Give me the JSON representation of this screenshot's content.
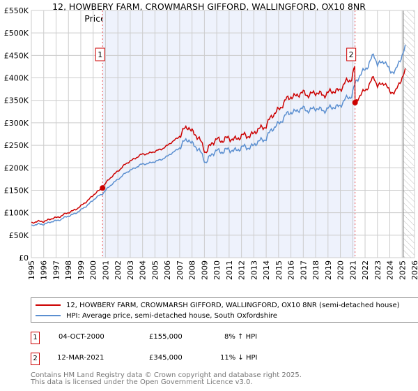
{
  "chart_data": {
    "type": "line",
    "title": "12, HOWBERY FARM, CROWMARSH GIFFORD, WALLINGFORD, OX10 8NR",
    "subtitle": "Price paid vs. HM Land Registry's House Price Index (HPI)",
    "xlim": [
      1995,
      2026
    ],
    "ylim": [
      0,
      550000
    ],
    "x_ticks": [
      "1995",
      "1996",
      "1997",
      "1998",
      "1999",
      "2000",
      "2001",
      "2002",
      "2003",
      "2004",
      "2005",
      "2006",
      "2007",
      "2008",
      "2009",
      "2010",
      "2011",
      "2012",
      "2013",
      "2014",
      "2015",
      "2016",
      "2017",
      "2018",
      "2019",
      "2020",
      "2021",
      "2022",
      "2023",
      "2024",
      "2025",
      "2026"
    ],
    "y_ticks": [
      {
        "v": 0,
        "label": "£0"
      },
      {
        "v": 50000,
        "label": "£50K"
      },
      {
        "v": 100000,
        "label": "£100K"
      },
      {
        "v": 150000,
        "label": "£150K"
      },
      {
        "v": 200000,
        "label": "£200K"
      },
      {
        "v": 250000,
        "label": "£250K"
      },
      {
        "v": 300000,
        "label": "£300K"
      },
      {
        "v": 350000,
        "label": "£350K"
      },
      {
        "v": 400000,
        "label": "£400K"
      },
      {
        "v": 450000,
        "label": "£450K"
      },
      {
        "v": 500000,
        "label": "£500K"
      },
      {
        "v": 550000,
        "label": "£550K"
      }
    ],
    "grid": true,
    "forecast_from": 2025.1,
    "hpi_series": {
      "name": "HPI: Average price, semi-detached house, South Oxfordshire",
      "color": "#5b8fd0",
      "x": [
        1995,
        1996,
        1997,
        1998,
        1999,
        2000,
        2000.76,
        2001,
        2002,
        2003,
        2004,
        2005,
        2006,
        2007,
        2007.7,
        2008.5,
        2009.1,
        2010,
        2011,
        2012,
        2013,
        2014,
        2015,
        2016,
        2017,
        2018,
        2019,
        2020,
        2020.9,
        2021.19,
        2022,
        2022.7,
        2023,
        2023.6,
        2024,
        2024.5,
        2025,
        2025.3
      ],
      "y": [
        72000,
        75000,
        82000,
        92000,
        105000,
        128000,
        143000,
        150000,
        175000,
        195000,
        208000,
        213000,
        225000,
        245000,
        265000,
        240000,
        215000,
        238000,
        238000,
        243000,
        250000,
        268000,
        300000,
        325000,
        330000,
        330000,
        330000,
        340000,
        362000,
        388000,
        420000,
        450000,
        430000,
        440000,
        410000,
        420000,
        450000,
        468000
      ]
    },
    "property_series": {
      "name": "12, HOWBERY FARM, CROWMARSH GIFFORD, WALLINGFORD, OX10 8NR (semi-detached house)",
      "color": "#cc0000"
    },
    "sales": [
      {
        "id": "1",
        "date": "04-OCT-2000",
        "x": 2000.76,
        "price": 155000,
        "price_label": "£155,000",
        "hpi": "8% ↑ HPI"
      },
      {
        "id": "2",
        "date": "12-MAR-2021",
        "x": 2021.19,
        "price": 345000,
        "price_label": "£345,000",
        "hpi": "11% ↓ HPI"
      }
    ]
  },
  "footer": {
    "line1": "Contains HM Land Registry data © Crown copyright and database right 2025.",
    "line2": "This data is licensed under the Open Government Licence v3.0."
  }
}
